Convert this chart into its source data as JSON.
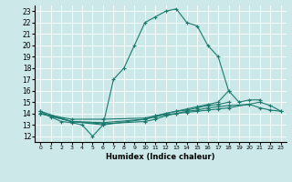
{
  "xlabel": "Humidex (Indice chaleur)",
  "bg_color": "#cce8e8",
  "grid_color": "#ffffff",
  "line_color": "#1a7a6e",
  "xlim": [
    -0.5,
    23.5
  ],
  "ylim": [
    11.5,
    23.5
  ],
  "xticks": [
    0,
    1,
    2,
    3,
    4,
    5,
    6,
    7,
    8,
    9,
    10,
    11,
    12,
    13,
    14,
    15,
    16,
    17,
    18,
    19,
    20,
    21,
    22,
    23
  ],
  "yticks": [
    12,
    13,
    14,
    15,
    16,
    17,
    18,
    19,
    20,
    21,
    22,
    23
  ],
  "line1_x": [
    0,
    1,
    2,
    3,
    4,
    5,
    6,
    7,
    8,
    9,
    10,
    11,
    12,
    13,
    14,
    15,
    16,
    17,
    18
  ],
  "line1_y": [
    14.2,
    13.7,
    13.3,
    13.2,
    13.0,
    12.0,
    13.0,
    17.0,
    18.0,
    20.0,
    22.0,
    22.5,
    23.0,
    23.2,
    22.0,
    21.7,
    20.0,
    19.0,
    16.0
  ],
  "line2_x": [
    0,
    3,
    6,
    10,
    11,
    12,
    13,
    14,
    15,
    16,
    17,
    18,
    19,
    20,
    21
  ],
  "line2_y": [
    14.2,
    13.3,
    13.2,
    13.5,
    13.8,
    14.0,
    14.2,
    14.4,
    14.6,
    14.8,
    15.0,
    16.0,
    15.0,
    15.2,
    15.2
  ],
  "line3_x": [
    0,
    3,
    6,
    10,
    11,
    12,
    13,
    14,
    15,
    16,
    17,
    18
  ],
  "line3_y": [
    14.0,
    13.5,
    13.5,
    13.6,
    13.8,
    14.0,
    14.2,
    14.3,
    14.5,
    14.7,
    14.8,
    15.0
  ],
  "line4_x": [
    0,
    3,
    6,
    10,
    11,
    12,
    13,
    14,
    15,
    16,
    17,
    18,
    20,
    21,
    22,
    23
  ],
  "line4_y": [
    14.0,
    13.3,
    13.0,
    13.5,
    13.7,
    13.9,
    14.0,
    14.2,
    14.3,
    14.5,
    14.6,
    14.7,
    14.8,
    14.5,
    14.3,
    14.2
  ],
  "line5_x": [
    0,
    3,
    6,
    10,
    11,
    12,
    13,
    14,
    15,
    16,
    17,
    18,
    21,
    22,
    23
  ],
  "line5_y": [
    14.0,
    13.3,
    13.1,
    13.3,
    13.5,
    13.8,
    14.0,
    14.1,
    14.2,
    14.3,
    14.4,
    14.5,
    15.0,
    14.7,
    14.2
  ]
}
